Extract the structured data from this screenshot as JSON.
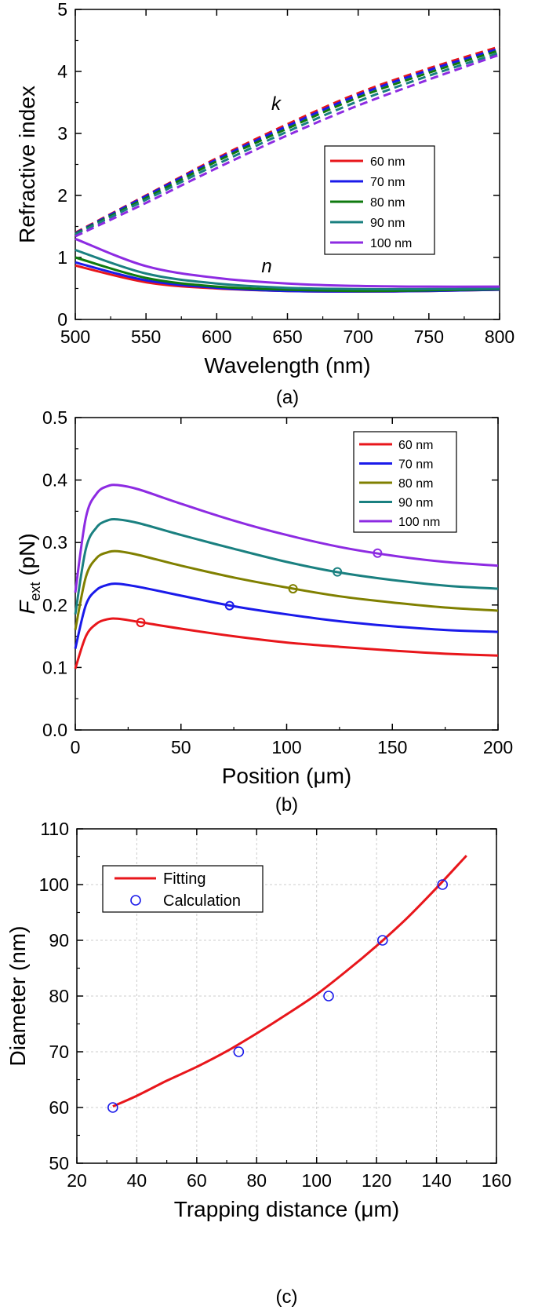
{
  "chart_data": [
    {
      "panel": "(a)",
      "type": "line",
      "xlabel": "Wavelength (nm)",
      "ylabel": "Refractive index",
      "xlim": [
        500,
        800
      ],
      "ylim": [
        0,
        5
      ],
      "xticks": [
        "500",
        "550",
        "600",
        "650",
        "700",
        "750",
        "800"
      ],
      "yticks": [
        "0",
        "1",
        "2",
        "3",
        "4",
        "5"
      ],
      "grid": false,
      "legend_position": "center-right",
      "annotations": [
        "k",
        "n"
      ],
      "x": [
        500,
        550,
        600,
        650,
        700,
        750,
        800
      ],
      "series": [
        {
          "name": "60 nm",
          "color": "#e8161b",
          "k": [
            1.4,
            2.0,
            2.6,
            3.15,
            3.65,
            4.05,
            4.4
          ],
          "n": [
            0.87,
            0.6,
            0.5,
            0.46,
            0.45,
            0.46,
            0.48
          ]
        },
        {
          "name": "70 nm",
          "color": "#1a1aea",
          "k": [
            1.39,
            1.99,
            2.58,
            3.12,
            3.62,
            4.02,
            4.37
          ],
          "n": [
            0.92,
            0.63,
            0.51,
            0.46,
            0.45,
            0.46,
            0.48
          ]
        },
        {
          "name": "80 nm",
          "color": "#0f7a0f",
          "k": [
            1.38,
            1.96,
            2.55,
            3.08,
            3.58,
            3.98,
            4.34
          ],
          "n": [
            1.0,
            0.67,
            0.53,
            0.48,
            0.46,
            0.47,
            0.49
          ]
        },
        {
          "name": "90 nm",
          "color": "#1a8080",
          "k": [
            1.37,
            1.93,
            2.5,
            3.03,
            3.52,
            3.93,
            4.3
          ],
          "n": [
            1.12,
            0.74,
            0.58,
            0.51,
            0.49,
            0.49,
            0.5
          ]
        },
        {
          "name": "100 nm",
          "color": "#8d2be2",
          "k": [
            1.34,
            1.88,
            2.44,
            2.97,
            3.45,
            3.87,
            4.27
          ],
          "n": [
            1.3,
            0.86,
            0.67,
            0.58,
            0.54,
            0.53,
            0.53
          ]
        }
      ]
    },
    {
      "panel": "(b)",
      "type": "line",
      "xlabel": "Position (μm)",
      "ylabel_main": "F",
      "ylabel_sub": "ext",
      "ylabel_rest": " (pN)",
      "xlim": [
        0,
        200
      ],
      "ylim": [
        0,
        0.5
      ],
      "xticks": [
        "0",
        "50",
        "100",
        "150",
        "200"
      ],
      "yticks": [
        "0.0",
        "0.1",
        "0.2",
        "0.3",
        "0.4",
        "0.5"
      ],
      "grid": false,
      "legend_position": "top-right",
      "series": [
        {
          "name": "60 nm",
          "color": "#e8161b",
          "x": [
            0,
            5,
            10,
            15,
            20,
            30,
            50,
            75,
            100,
            125,
            150,
            175,
            200
          ],
          "y": [
            0.098,
            0.15,
            0.17,
            0.177,
            0.178,
            0.173,
            0.162,
            0.15,
            0.14,
            0.133,
            0.127,
            0.122,
            0.119
          ],
          "marker": {
            "x": 31,
            "y": 0.172
          }
        },
        {
          "name": "70 nm",
          "color": "#1a1aea",
          "x": [
            0,
            5,
            10,
            15,
            20,
            30,
            50,
            75,
            100,
            125,
            150,
            175,
            200
          ],
          "y": [
            0.13,
            0.2,
            0.224,
            0.232,
            0.234,
            0.229,
            0.215,
            0.198,
            0.185,
            0.174,
            0.166,
            0.16,
            0.157
          ],
          "marker": {
            "x": 73,
            "y": 0.199
          }
        },
        {
          "name": "80 nm",
          "color": "#808000",
          "x": [
            0,
            5,
            10,
            15,
            20,
            30,
            50,
            75,
            100,
            125,
            150,
            175,
            200
          ],
          "y": [
            0.16,
            0.245,
            0.275,
            0.284,
            0.286,
            0.28,
            0.263,
            0.244,
            0.228,
            0.214,
            0.204,
            0.196,
            0.191
          ],
          "marker": {
            "x": 103,
            "y": 0.226
          }
        },
        {
          "name": "90 nm",
          "color": "#1a8080",
          "x": [
            0,
            5,
            10,
            15,
            20,
            30,
            50,
            75,
            100,
            125,
            150,
            175,
            200
          ],
          "y": [
            0.185,
            0.29,
            0.324,
            0.335,
            0.337,
            0.331,
            0.312,
            0.29,
            0.269,
            0.252,
            0.24,
            0.231,
            0.226
          ],
          "marker": {
            "x": 124,
            "y": 0.253
          }
        },
        {
          "name": "100 nm",
          "color": "#8d2be2",
          "x": [
            0,
            5,
            10,
            15,
            20,
            30,
            50,
            75,
            100,
            125,
            150,
            175,
            200
          ],
          "y": [
            0.22,
            0.34,
            0.378,
            0.39,
            0.392,
            0.385,
            0.362,
            0.335,
            0.312,
            0.293,
            0.279,
            0.269,
            0.263
          ],
          "marker": {
            "x": 143,
            "y": 0.283
          }
        }
      ]
    },
    {
      "panel": "(c)",
      "type": "scatter",
      "xlabel": "Trapping distance (μm)",
      "ylabel": "Diameter (nm)",
      "xlim": [
        20,
        160
      ],
      "ylim": [
        50,
        110
      ],
      "xticks": [
        "20",
        "40",
        "60",
        "80",
        "100",
        "120",
        "140",
        "160"
      ],
      "yticks": [
        "50",
        "60",
        "70",
        "80",
        "90",
        "100",
        "110"
      ],
      "grid": true,
      "legend_position": "top-left",
      "series": [
        {
          "name": "Fitting",
          "color": "#e8161b",
          "kind": "line",
          "x": [
            32,
            40,
            50,
            60,
            70,
            80,
            90,
            100,
            110,
            120,
            130,
            140,
            150
          ],
          "y": [
            60.2,
            62.1,
            64.8,
            67.3,
            70.1,
            73.3,
            76.7,
            80.3,
            84.5,
            89.0,
            93.9,
            99.4,
            105.2
          ]
        },
        {
          "name": "Calculation",
          "color": "#1a1aea",
          "kind": "markers",
          "x": [
            32,
            74,
            104,
            122,
            142
          ],
          "y": [
            60,
            70,
            80,
            90,
            100
          ]
        }
      ]
    }
  ]
}
